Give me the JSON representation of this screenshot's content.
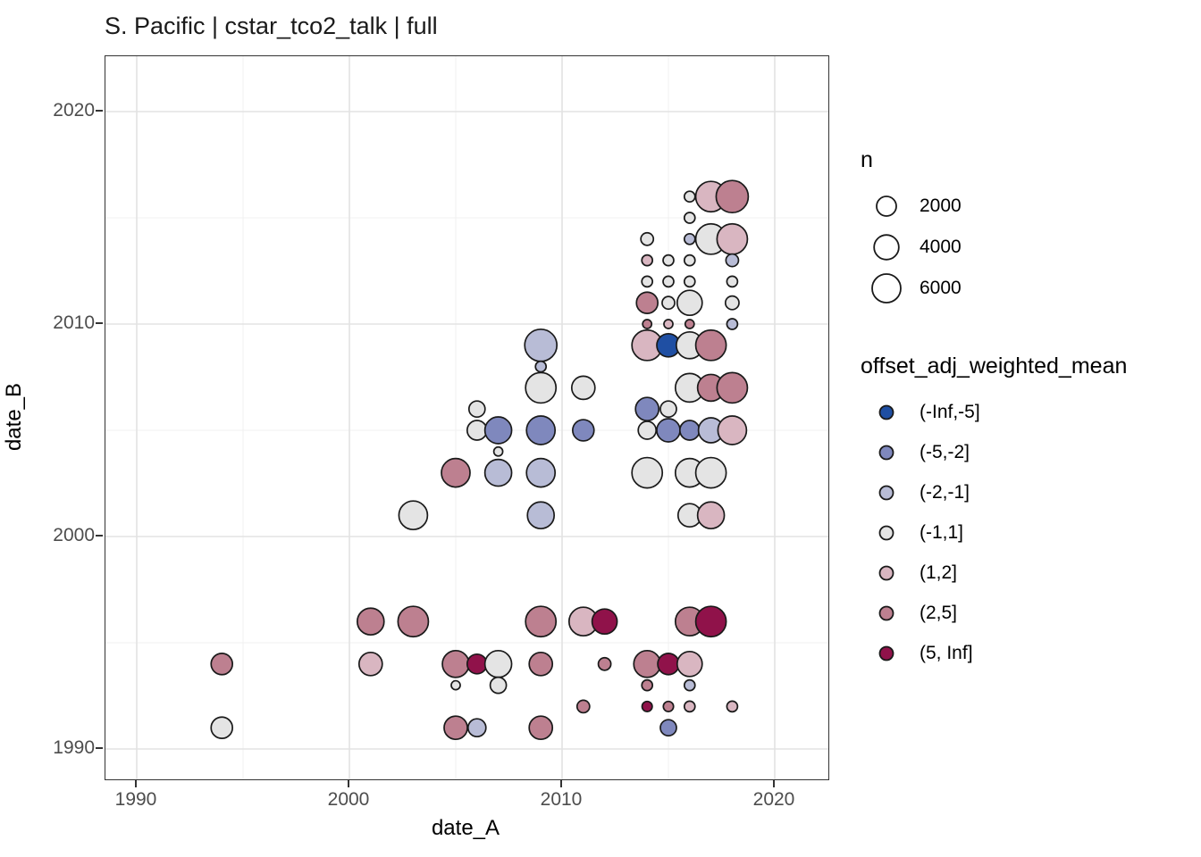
{
  "chart_data": {
    "type": "scatter",
    "title": "S. Pacific | cstar_tco2_talk | full",
    "xlabel": "date_A",
    "ylabel": "date_B",
    "xlim": [
      1988.5,
      2022.5
    ],
    "ylim": [
      1988.4,
      2022.6
    ],
    "x_ticks": [
      1990,
      2000,
      2010,
      2020
    ],
    "y_ticks": [
      1990,
      2000,
      2010,
      2020
    ],
    "minor_ticks": [
      1995,
      2005,
      2015
    ],
    "grid": true,
    "legend_position": "right",
    "size_legend": {
      "title": "n",
      "values": [
        2000,
        4000,
        6000
      ]
    },
    "color_legend": {
      "title": "offset_adj_weighted_mean",
      "bins": [
        {
          "label": "(-Inf,-5]",
          "color": "#1f4fa3"
        },
        {
          "label": "(-5,-2]",
          "color": "#7f88bd"
        },
        {
          "label": "(-2,-1]",
          "color": "#b8bcd6"
        },
        {
          "label": "(-1,1]",
          "color": "#e4e4e4"
        },
        {
          "label": "(1,2]",
          "color": "#d9b6c1"
        },
        {
          "label": "(2,5]",
          "color": "#bd8090"
        },
        {
          "label": "(5, Inf]",
          "color": "#90124a"
        }
      ]
    },
    "point_fields": [
      "date_A",
      "date_B",
      "n",
      "bin"
    ],
    "points": [
      [
        2016,
        2016,
        140,
        "(-1,1]"
      ],
      [
        2017,
        2016,
        7100,
        "(1,2]"
      ],
      [
        2018,
        2016,
        8200,
        "(2,5]"
      ],
      [
        2016,
        2015,
        140,
        "(-1,1]"
      ],
      [
        2014,
        2014,
        350,
        "(-1,1]"
      ],
      [
        2016,
        2014,
        140,
        "(-2,-1]"
      ],
      [
        2017,
        2014,
        7100,
        "(-1,1]"
      ],
      [
        2018,
        2014,
        7100,
        "(1,2]"
      ],
      [
        2014,
        2013,
        140,
        "(1,2]"
      ],
      [
        2015,
        2013,
        140,
        "(-1,1]"
      ],
      [
        2016,
        2013,
        140,
        "(-1,1]"
      ],
      [
        2018,
        2013,
        350,
        "(-2,-1]"
      ],
      [
        2014,
        2012,
        140,
        "(-1,1]"
      ],
      [
        2015,
        2012,
        140,
        "(-1,1]"
      ],
      [
        2016,
        2012,
        140,
        "(-1,1]"
      ],
      [
        2018,
        2012,
        140,
        "(-1,1]"
      ],
      [
        2014,
        2011,
        2600,
        "(2,5]"
      ],
      [
        2015,
        2011,
        350,
        "(-1,1]"
      ],
      [
        2016,
        2011,
        4150,
        "(-1,1]"
      ],
      [
        2018,
        2011,
        500,
        "(-1,1]"
      ],
      [
        2014,
        2010,
        30,
        "(2,5]"
      ],
      [
        2015,
        2010,
        30,
        "(1,2]"
      ],
      [
        2016,
        2010,
        30,
        "(2,5]"
      ],
      [
        2018,
        2010,
        140,
        "(-2,-1]"
      ],
      [
        2009,
        2009,
        8200,
        "(-2,-1]"
      ],
      [
        2014,
        2009,
        7100,
        "(1,2]"
      ],
      [
        2015,
        2009,
        3350,
        "(-Inf,-5]"
      ],
      [
        2016,
        2009,
        5000,
        "(-1,1]"
      ],
      [
        2017,
        2009,
        7100,
        "(2,5]"
      ],
      [
        2009,
        2008,
        140,
        "(-2,-1]"
      ],
      [
        2009,
        2007,
        7100,
        "(-1,1]"
      ],
      [
        2011,
        2007,
        3350,
        "(-1,1]"
      ],
      [
        2016,
        2007,
        6000,
        "(-1,1]"
      ],
      [
        2017,
        2007,
        5000,
        "(2,5]"
      ],
      [
        2018,
        2007,
        7100,
        "(2,5]"
      ],
      [
        2006,
        2006,
        1000,
        "(-1,1]"
      ],
      [
        2014,
        2006,
        3350,
        "(-5,-2]"
      ],
      [
        2015,
        2006,
        1000,
        "(-1,1]"
      ],
      [
        2006,
        2005,
        2000,
        "(-1,1]"
      ],
      [
        2007,
        2005,
        5000,
        "(-5,-2]"
      ],
      [
        2009,
        2005,
        6000,
        "(-5,-2]"
      ],
      [
        2011,
        2005,
        2600,
        "(-5,-2]"
      ],
      [
        2014,
        2005,
        1450,
        "(-1,1]"
      ],
      [
        2015,
        2005,
        3350,
        "(-5,-2]"
      ],
      [
        2016,
        2005,
        2000,
        "(-5,-2]"
      ],
      [
        2017,
        2005,
        4150,
        "(-2,-1]"
      ],
      [
        2018,
        2005,
        6000,
        "(1,2]"
      ],
      [
        2007,
        2004,
        30,
        "(-1,1]"
      ],
      [
        2005,
        2003,
        6000,
        "(2,5]"
      ],
      [
        2007,
        2003,
        5000,
        "(-2,-1]"
      ],
      [
        2009,
        2003,
        6000,
        "(-2,-1]"
      ],
      [
        2014,
        2003,
        7100,
        "(-1,1]"
      ],
      [
        2016,
        2003,
        6000,
        "(-1,1]"
      ],
      [
        2017,
        2003,
        7100,
        "(-1,1]"
      ],
      [
        2003,
        2001,
        6000,
        "(-1,1]"
      ],
      [
        2009,
        2001,
        5000,
        "(-2,-1]"
      ],
      [
        2016,
        2001,
        3350,
        "(-1,1]"
      ],
      [
        2017,
        2001,
        5000,
        "(1,2]"
      ],
      [
        2001,
        1996,
        5000,
        "(2,5]"
      ],
      [
        2003,
        1996,
        7100,
        "(2,5]"
      ],
      [
        2009,
        1996,
        7100,
        "(2,5]"
      ],
      [
        2011,
        1996,
        6000,
        "(1,2]"
      ],
      [
        2012,
        1996,
        4150,
        "(5, Inf]"
      ],
      [
        2016,
        1996,
        6000,
        "(2,5]"
      ],
      [
        2017,
        1996,
        7100,
        "(5, Inf]"
      ],
      [
        1994,
        1994,
        2600,
        "(2,5]"
      ],
      [
        2001,
        1994,
        3350,
        "(1,2]"
      ],
      [
        2005,
        1994,
        5000,
        "(2,5]"
      ],
      [
        2006,
        1994,
        2000,
        "(5, Inf]"
      ],
      [
        2007,
        1994,
        5000,
        "(-1,1]"
      ],
      [
        2009,
        1994,
        3350,
        "(2,5]"
      ],
      [
        2012,
        1994,
        350,
        "(2,5]"
      ],
      [
        2014,
        1994,
        5000,
        "(2,5]"
      ],
      [
        2015,
        1994,
        2600,
        "(5, Inf]"
      ],
      [
        2016,
        1994,
        4150,
        "(1,2]"
      ],
      [
        2005,
        1993,
        30,
        "(-1,1]"
      ],
      [
        2007,
        1993,
        1000,
        "(-1,1]"
      ],
      [
        2014,
        1993,
        140,
        "(2,5]"
      ],
      [
        2016,
        1993,
        140,
        "(-2,-1]"
      ],
      [
        2011,
        1992,
        350,
        "(2,5]"
      ],
      [
        2014,
        1992,
        100,
        "(5, Inf]"
      ],
      [
        2015,
        1992,
        100,
        "(2,5]"
      ],
      [
        2016,
        1992,
        140,
        "(1,2]"
      ],
      [
        2018,
        1992,
        140,
        "(1,2]"
      ],
      [
        1994,
        1991,
        2600,
        "(-1,1]"
      ],
      [
        2005,
        1991,
        3350,
        "(2,5]"
      ],
      [
        2006,
        1991,
        1450,
        "(-2,-1]"
      ],
      [
        2009,
        1991,
        3350,
        "(2,5]"
      ],
      [
        2015,
        1991,
        1000,
        "(-5,-2]"
      ]
    ],
    "style": {
      "major_grid_color": "#e3e3e3",
      "minor_grid_color": "#f1f1f1",
      "point_stroke": "#1a1a1a",
      "panel_border": "#333333",
      "tick_label_color": "#4d4d4d"
    }
  }
}
